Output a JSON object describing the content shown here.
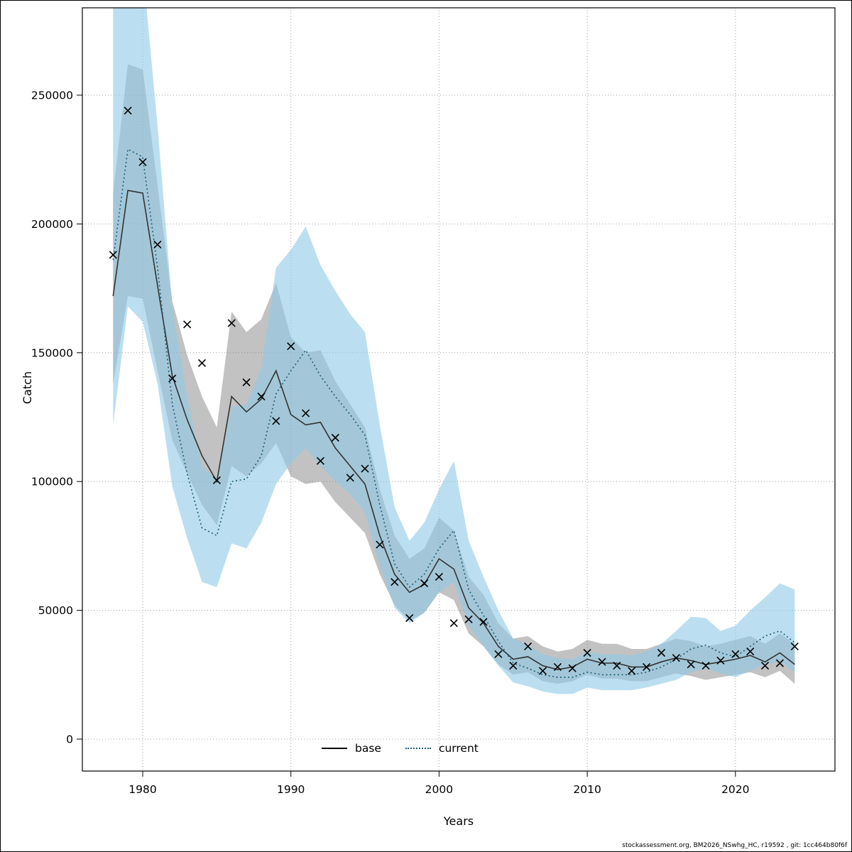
{
  "figure": {
    "footer_text": "stockassessment.org, BM2026_NSwhg_HC, r19592 , git: 1cc464b80f6f"
  },
  "chart_data": {
    "type": "line",
    "title": "",
    "xlabel": "Years",
    "ylabel": "Catch",
    "grid": "dotted",
    "legend_position": "bottom-center-inside",
    "xlim": [
      1976,
      2026.5
    ],
    "ylim": [
      0,
      284000
    ],
    "xticks": [
      1980,
      1990,
      2000,
      2010,
      2020
    ],
    "yticks": [
      0,
      50000,
      100000,
      150000,
      200000,
      250000
    ],
    "x": [
      1978,
      1979,
      1980,
      1981,
      1982,
      1983,
      1984,
      1985,
      1986,
      1987,
      1988,
      1989,
      1990,
      1991,
      1992,
      1993,
      1994,
      1995,
      1996,
      1997,
      1998,
      1999,
      2000,
      2001,
      2002,
      2003,
      2004,
      2005,
      2006,
      2007,
      2008,
      2009,
      2010,
      2011,
      2012,
      2013,
      2014,
      2015,
      2016,
      2017,
      2018,
      2019,
      2020,
      2021,
      2022,
      2023,
      2024
    ],
    "observations": {
      "name": "observed-catch",
      "marker": "x",
      "values": [
        188000,
        244000,
        224000,
        192000,
        140000,
        161000,
        146000,
        100500,
        161500,
        138500,
        133000,
        123500,
        152500,
        126500,
        108000,
        117000,
        101500,
        105000,
        75500,
        61000,
        47000,
        60500,
        63000,
        45000,
        46500,
        45500,
        33000,
        28500,
        36000,
        26500,
        28000,
        27500,
        33500,
        30000,
        28500,
        26500,
        28000,
        33500,
        31500,
        29000,
        28500,
        30500,
        33000,
        34000,
        28500,
        29500,
        36000
      ]
    },
    "series": [
      {
        "name": "base",
        "style": "solid",
        "color": "#333333",
        "band_color": "rgba(110,110,110,0.42)",
        "values": [
          172000,
          213000,
          212000,
          176000,
          141000,
          124000,
          110000,
          100000,
          133000,
          127000,
          132000,
          143000,
          126000,
          122000,
          123000,
          113000,
          106000,
          99000,
          79000,
          64000,
          57000,
          60000,
          70000,
          66000,
          51000,
          45000,
          36000,
          31000,
          32000,
          28500,
          27000,
          28000,
          31000,
          29500,
          29500,
          28000,
          28000,
          30000,
          31500,
          30500,
          29000,
          30000,
          31000,
          32500,
          30000,
          33500,
          29000
        ],
        "upper": [
          212000,
          262000,
          260000,
          215000,
          170000,
          149000,
          133000,
          121000,
          166000,
          158000,
          163000,
          177000,
          156000,
          150000,
          151000,
          139000,
          130000,
          121000,
          97000,
          79000,
          70000,
          74000,
          86000,
          81000,
          63000,
          56000,
          45000,
          39000,
          40000,
          36000,
          34000,
          35000,
          38500,
          37000,
          37000,
          35000,
          35000,
          37000,
          39000,
          38000,
          36000,
          37000,
          38500,
          40000,
          37000,
          41000,
          37000
        ],
        "lower": [
          138000,
          172000,
          171000,
          143000,
          116000,
          103000,
          91000,
          83000,
          106000,
          102000,
          107000,
          115000,
          102000,
          99000,
          100000,
          92000,
          86000,
          80000,
          64000,
          52000,
          46000,
          49000,
          57000,
          54000,
          41000,
          36000,
          29000,
          25000,
          26000,
          22500,
          21500,
          22500,
          25000,
          23500,
          23500,
          22500,
          22500,
          24000,
          25500,
          24500,
          23000,
          24000,
          25000,
          26000,
          24000,
          26500,
          21500
        ]
      },
      {
        "name": "current",
        "style": "dotted",
        "color": "#1f5c79",
        "band_color": "rgba(141,202,230,0.60)",
        "values": [
          186000,
          229000,
          226000,
          183000,
          130000,
          103000,
          82000,
          79000,
          100000,
          101000,
          110000,
          134000,
          143000,
          151000,
          141000,
          133000,
          126000,
          118000,
          91000,
          68000,
          59000,
          64000,
          74000,
          81000,
          58000,
          48000,
          38000,
          29500,
          27500,
          25000,
          24000,
          24000,
          26000,
          25000,
          25000,
          25000,
          26000,
          28000,
          31000,
          35000,
          36500,
          33500,
          32000,
          36000,
          40000,
          42000,
          37500
        ],
        "upper": [
          292000,
          310000,
          300000,
          238000,
          168000,
          133000,
          106000,
          101000,
          129000,
          130000,
          144000,
          183000,
          190000,
          199000,
          184000,
          174000,
          165000,
          158000,
          122000,
          90000,
          77000,
          84000,
          97000,
          108000,
          77000,
          63000,
          50000,
          39000,
          36500,
          33000,
          31500,
          31000,
          34000,
          33000,
          33000,
          32500,
          34000,
          37000,
          42000,
          47500,
          47000,
          42000,
          44000,
          50000,
          55000,
          60500,
          58000
        ],
        "lower": [
          122000,
          168000,
          162000,
          138000,
          98000,
          78000,
          61000,
          59000,
          76000,
          74000,
          84000,
          99000,
          107000,
          113000,
          106000,
          100000,
          95000,
          88000,
          67000,
          51000,
          45000,
          49000,
          57000,
          61000,
          44000,
          36000,
          28500,
          22000,
          20500,
          18500,
          17500,
          17500,
          20000,
          19000,
          19000,
          19000,
          20000,
          21500,
          23000,
          26000,
          27500,
          25500,
          24000,
          26500,
          29000,
          30000,
          26000
        ]
      }
    ],
    "colors": {
      "grid": "#9e9e9e",
      "marker": "#000000",
      "panel_border": "#000000",
      "base_line": "#333333",
      "current_line": "#1f5c79",
      "base_band": "rgba(110,110,110,0.42)",
      "current_band": "rgba(141,202,230,0.60)"
    }
  }
}
